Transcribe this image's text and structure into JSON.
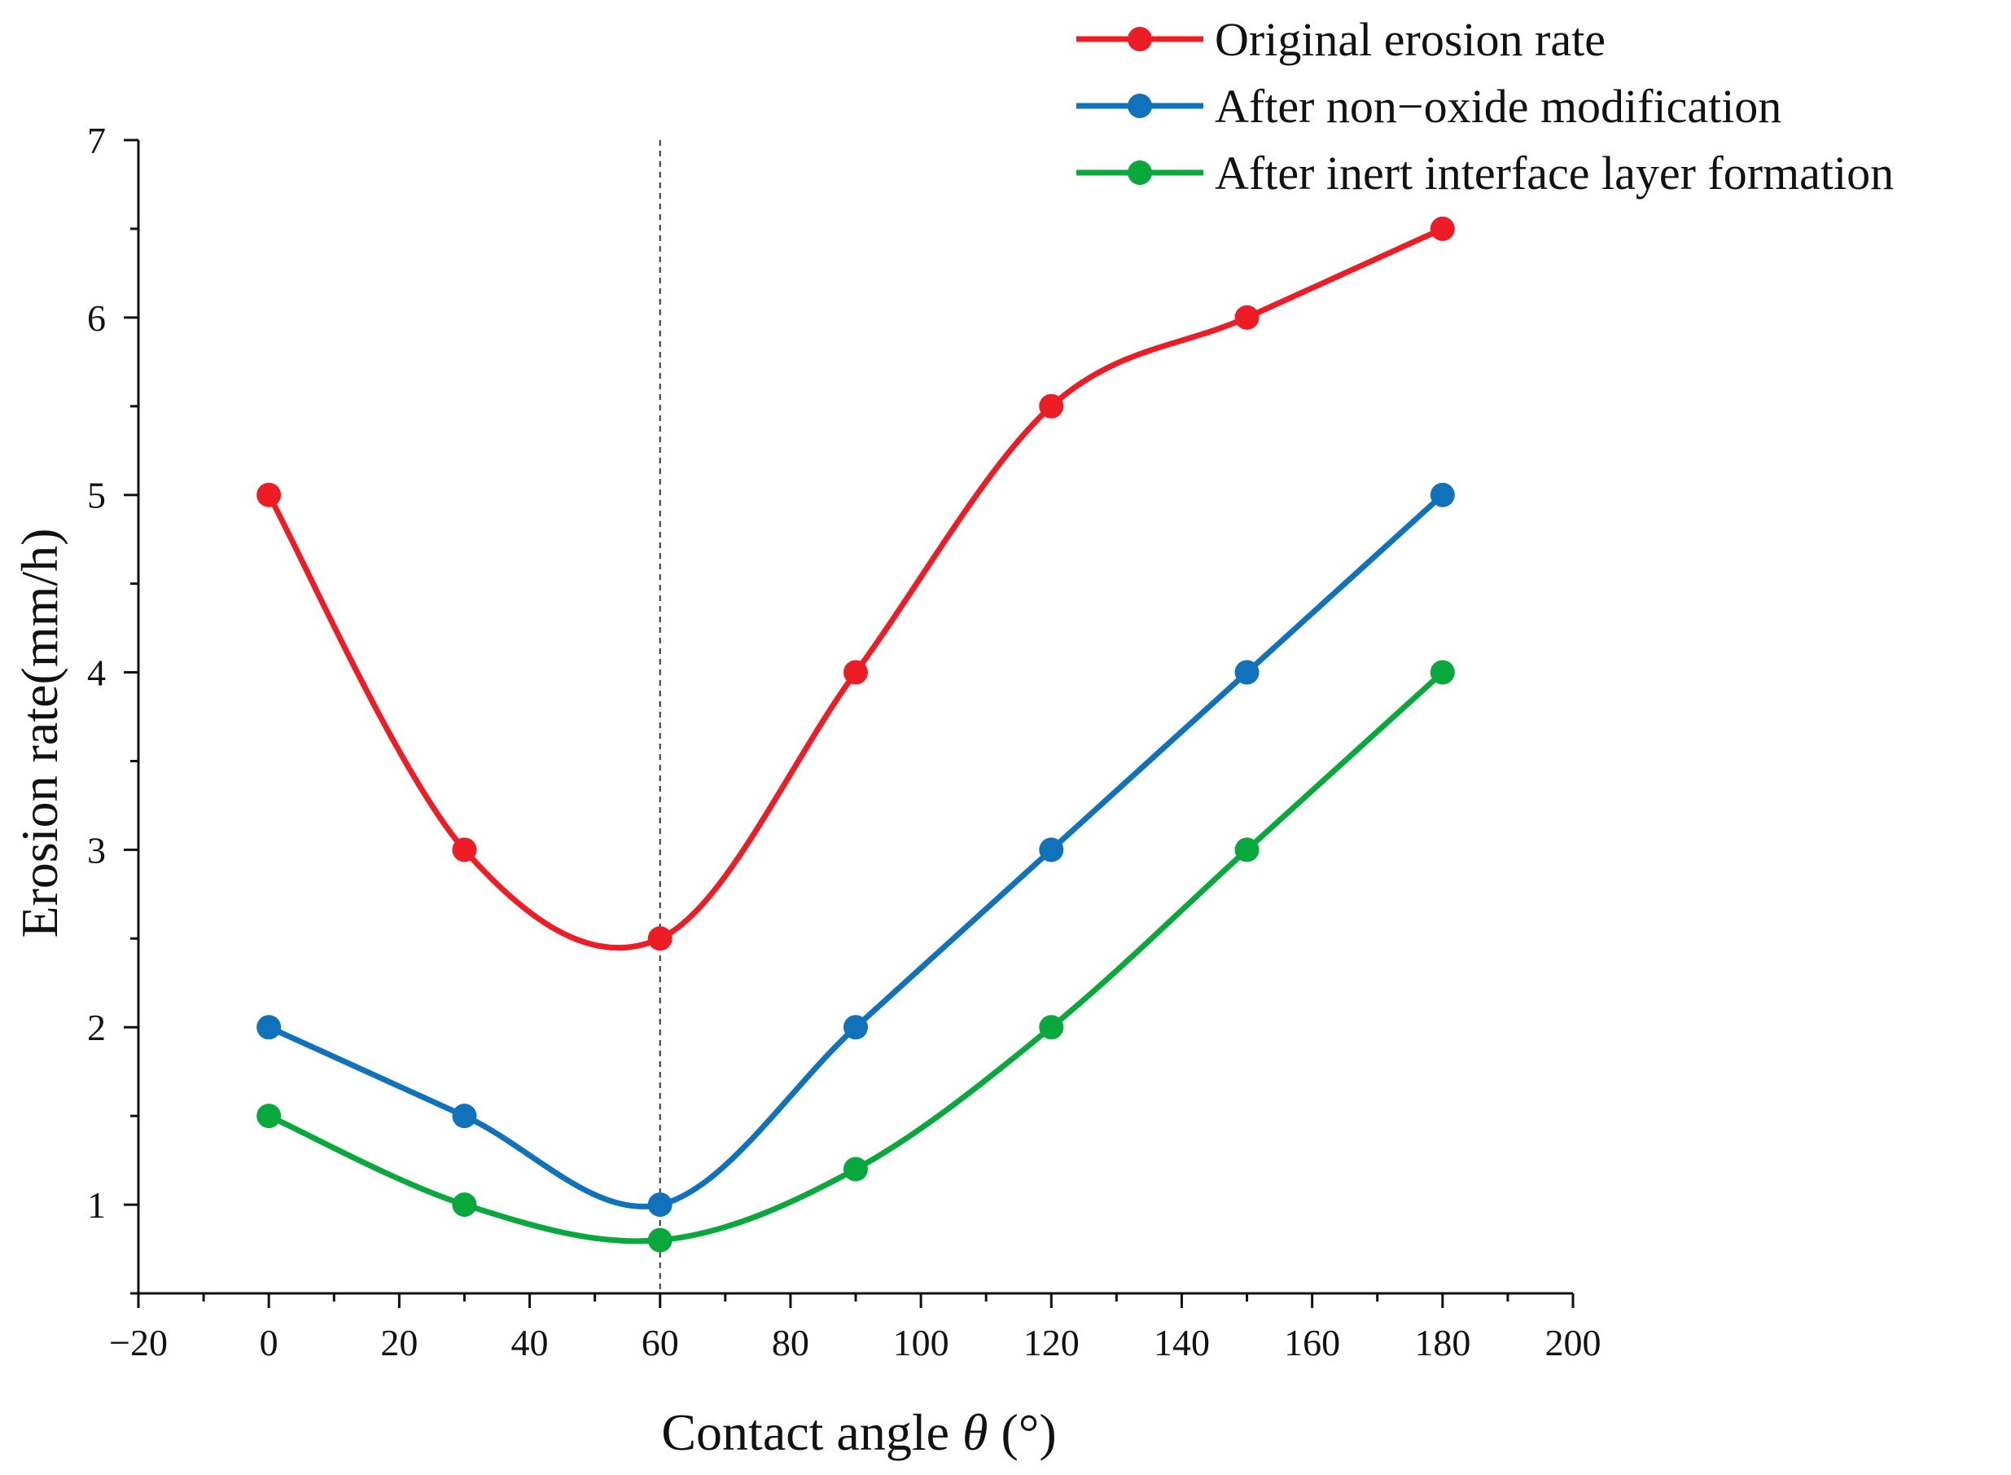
{
  "chart_data": {
    "type": "line",
    "title": "",
    "xlabel_prefix": "Contact angle ",
    "xlabel_symbol": "θ",
    "xlabel_suffix": " (°)",
    "ylabel": "Erosion rate(mm/h)",
    "xlim": [
      -20,
      200
    ],
    "ylim": [
      0.5,
      7
    ],
    "x_ticks": [
      -20,
      0,
      20,
      40,
      60,
      80,
      100,
      120,
      140,
      160,
      180,
      200
    ],
    "x_tick_labels": [
      "−20",
      "0",
      "20",
      "40",
      "60",
      "80",
      "100",
      "120",
      "140",
      "160",
      "180",
      "200"
    ],
    "y_ticks": [
      1,
      2,
      3,
      4,
      5,
      6,
      7
    ],
    "y_tick_labels": [
      "1",
      "2",
      "3",
      "4",
      "5",
      "6",
      "7"
    ],
    "reference_line_x": 60,
    "legend_position": "top-right",
    "x": [
      0,
      30,
      60,
      90,
      120,
      150,
      180
    ],
    "series": [
      {
        "name": "Original erosion rate",
        "color": "#ee1c25",
        "values": [
          5,
          3,
          2.5,
          4,
          5.5,
          6,
          6.5
        ]
      },
      {
        "name": "After non−oxide modification",
        "color": "#0f72ba",
        "values": [
          2,
          1.5,
          1,
          2,
          3,
          4,
          5
        ]
      },
      {
        "name": "After inert interface layer formation",
        "color": "#08a83c",
        "values": [
          1.5,
          1,
          0.8,
          1.2,
          2,
          3,
          4
        ]
      }
    ]
  }
}
